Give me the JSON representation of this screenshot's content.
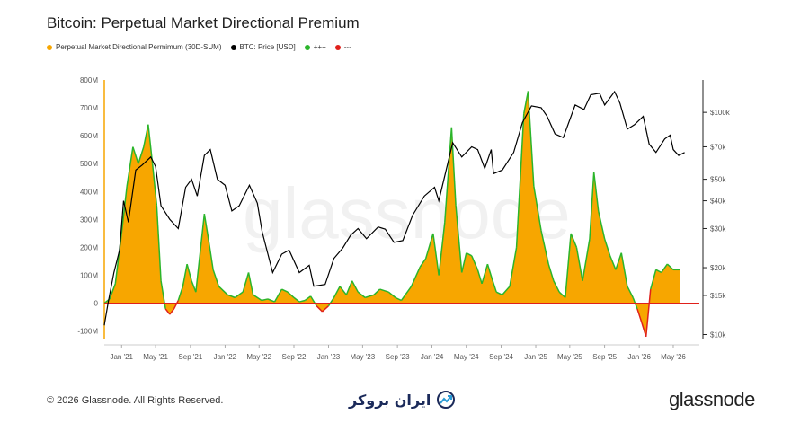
{
  "title": "Bitcoin: Perpetual Market Directional Premium",
  "legend": [
    {
      "label": "Perpetual Market Directional Permimum (30D-SUM)",
      "color": "#f7a600"
    },
    {
      "label": "BTC: Price [USD]",
      "color": "#000000"
    },
    {
      "label": "+++",
      "color": "#2bb52b"
    },
    {
      "label": "---",
      "color": "#e0201b"
    }
  ],
  "watermark": "glassnode",
  "footer": {
    "copyright": "© 2026 Glassnode. All Rights Reserved.",
    "center_brand": "ایران بروکر",
    "right_brand": "glassnode"
  },
  "chart_data": {
    "type": "area",
    "title": "Bitcoin: Perpetual Market Directional Premium",
    "x_ticks": [
      "Jan '21",
      "May '21",
      "Sep '21",
      "Jan '22",
      "May '22",
      "Sep '22",
      "Jan '23",
      "May '23",
      "Sep '23",
      "Jan '24",
      "May '24",
      "Sep '24",
      "Jan '25",
      "May '25",
      "Sep '25",
      "Jan '26",
      "May '26"
    ],
    "y_left_ticks": [
      "800M",
      "700M",
      "600M",
      "500M",
      "400M",
      "300M",
      "200M",
      "100M",
      "0",
      "-100M"
    ],
    "y_left_range": [
      -130,
      800
    ],
    "y_right_ticks": [
      "$100k",
      "$70k",
      "$50k",
      "$40k",
      "$30k",
      "$20k",
      "$15k",
      "$10k"
    ],
    "y_right_scale": "log",
    "y_right_range": [
      9500,
      140000
    ],
    "x_range": [
      "2020-11-01",
      "2026-08-01"
    ],
    "premium_series": {
      "name": "Perpetual Market Directional Permimum (30D-SUM)",
      "points": [
        [
          "2020-11-01",
          0
        ],
        [
          "2020-11-20",
          15
        ],
        [
          "2020-12-10",
          70
        ],
        [
          "2021-01-01",
          250
        ],
        [
          "2021-01-20",
          420
        ],
        [
          "2021-02-10",
          560
        ],
        [
          "2021-03-01",
          500
        ],
        [
          "2021-03-20",
          560
        ],
        [
          "2021-04-05",
          640
        ],
        [
          "2021-04-20",
          500
        ],
        [
          "2021-05-05",
          350
        ],
        [
          "2021-05-20",
          80
        ],
        [
          "2021-06-05",
          -20
        ],
        [
          "2021-06-20",
          -40
        ],
        [
          "2021-07-05",
          -20
        ],
        [
          "2021-07-20",
          10
        ],
        [
          "2021-08-05",
          60
        ],
        [
          "2021-08-20",
          140
        ],
        [
          "2021-09-05",
          80
        ],
        [
          "2021-09-20",
          40
        ],
        [
          "2021-10-05",
          180
        ],
        [
          "2021-10-20",
          320
        ],
        [
          "2021-11-05",
          220
        ],
        [
          "2021-11-20",
          120
        ],
        [
          "2021-12-10",
          60
        ],
        [
          "2022-01-10",
          30
        ],
        [
          "2022-02-05",
          20
        ],
        [
          "2022-03-05",
          40
        ],
        [
          "2022-03-25",
          110
        ],
        [
          "2022-04-10",
          30
        ],
        [
          "2022-05-10",
          10
        ],
        [
          "2022-06-01",
          15
        ],
        [
          "2022-06-25",
          5
        ],
        [
          "2022-07-20",
          50
        ],
        [
          "2022-08-10",
          40
        ],
        [
          "2022-09-01",
          20
        ],
        [
          "2022-09-20",
          5
        ],
        [
          "2022-10-10",
          10
        ],
        [
          "2022-10-30",
          25
        ],
        [
          "2022-11-20",
          -10
        ],
        [
          "2022-12-10",
          -30
        ],
        [
          "2023-01-01",
          -10
        ],
        [
          "2023-01-20",
          20
        ],
        [
          "2023-02-10",
          60
        ],
        [
          "2023-03-05",
          30
        ],
        [
          "2023-03-25",
          80
        ],
        [
          "2023-04-15",
          40
        ],
        [
          "2023-05-10",
          20
        ],
        [
          "2023-06-10",
          30
        ],
        [
          "2023-07-01",
          50
        ],
        [
          "2023-08-01",
          40
        ],
        [
          "2023-08-25",
          20
        ],
        [
          "2023-09-15",
          10
        ],
        [
          "2023-10-20",
          60
        ],
        [
          "2023-11-20",
          130
        ],
        [
          "2023-12-10",
          160
        ],
        [
          "2024-01-05",
          250
        ],
        [
          "2024-01-25",
          100
        ],
        [
          "2024-02-15",
          290
        ],
        [
          "2024-03-10",
          630
        ],
        [
          "2024-03-25",
          350
        ],
        [
          "2024-04-15",
          110
        ],
        [
          "2024-05-01",
          180
        ],
        [
          "2024-05-20",
          170
        ],
        [
          "2024-06-10",
          120
        ],
        [
          "2024-06-25",
          70
        ],
        [
          "2024-07-15",
          140
        ],
        [
          "2024-07-30",
          90
        ],
        [
          "2024-08-15",
          40
        ],
        [
          "2024-09-05",
          30
        ],
        [
          "2024-10-01",
          60
        ],
        [
          "2024-10-25",
          200
        ],
        [
          "2024-11-20",
          680
        ],
        [
          "2024-12-05",
          760
        ],
        [
          "2024-12-25",
          420
        ],
        [
          "2025-01-20",
          260
        ],
        [
          "2025-02-15",
          140
        ],
        [
          "2025-03-05",
          80
        ],
        [
          "2025-03-25",
          40
        ],
        [
          "2025-04-15",
          20
        ],
        [
          "2025-05-05",
          250
        ],
        [
          "2025-05-25",
          200
        ],
        [
          "2025-06-15",
          80
        ],
        [
          "2025-07-10",
          230
        ],
        [
          "2025-07-25",
          470
        ],
        [
          "2025-08-10",
          330
        ],
        [
          "2025-09-01",
          230
        ],
        [
          "2025-09-20",
          170
        ],
        [
          "2025-10-10",
          120
        ],
        [
          "2025-10-30",
          180
        ],
        [
          "2025-11-20",
          60
        ],
        [
          "2025-12-10",
          20
        ],
        [
          "2025-12-25",
          -20
        ],
        [
          "2026-01-10",
          -70
        ],
        [
          "2026-01-25",
          -120
        ],
        [
          "2026-02-10",
          50
        ],
        [
          "2026-03-01",
          120
        ],
        [
          "2026-03-20",
          110
        ],
        [
          "2026-04-10",
          140
        ],
        [
          "2026-05-01",
          120
        ],
        [
          "2026-05-25",
          120
        ]
      ]
    },
    "price_series": {
      "name": "BTC: Price [USD]",
      "points": [
        [
          "2020-11-01",
          11000
        ],
        [
          "2020-11-15",
          14000
        ],
        [
          "2020-12-05",
          19000
        ],
        [
          "2020-12-25",
          24000
        ],
        [
          "2021-01-08",
          40000
        ],
        [
          "2021-01-25",
          32000
        ],
        [
          "2021-02-20",
          55000
        ],
        [
          "2021-03-15",
          58000
        ],
        [
          "2021-04-14",
          63000
        ],
        [
          "2021-05-01",
          57000
        ],
        [
          "2021-05-20",
          38000
        ],
        [
          "2021-06-20",
          33000
        ],
        [
          "2021-07-20",
          30000
        ],
        [
          "2021-08-15",
          46000
        ],
        [
          "2021-09-05",
          50000
        ],
        [
          "2021-09-25",
          42000
        ],
        [
          "2021-10-20",
          64000
        ],
        [
          "2021-11-10",
          68000
        ],
        [
          "2021-12-05",
          50000
        ],
        [
          "2022-01-01",
          47000
        ],
        [
          "2022-01-25",
          36000
        ],
        [
          "2022-02-20",
          38000
        ],
        [
          "2022-03-28",
          47000
        ],
        [
          "2022-04-25",
          39000
        ],
        [
          "2022-05-12",
          29000
        ],
        [
          "2022-06-18",
          19000
        ],
        [
          "2022-07-20",
          23000
        ],
        [
          "2022-08-15",
          24000
        ],
        [
          "2022-09-20",
          19000
        ],
        [
          "2022-10-25",
          20500
        ],
        [
          "2022-11-10",
          16500
        ],
        [
          "2022-12-20",
          16800
        ],
        [
          "2023-01-20",
          22000
        ],
        [
          "2023-02-20",
          24500
        ],
        [
          "2023-03-20",
          28000
        ],
        [
          "2023-04-15",
          30000
        ],
        [
          "2023-05-15",
          27000
        ],
        [
          "2023-06-25",
          30500
        ],
        [
          "2023-07-20",
          29800
        ],
        [
          "2023-08-20",
          26000
        ],
        [
          "2023-09-20",
          26500
        ],
        [
          "2023-10-25",
          34500
        ],
        [
          "2023-12-05",
          42000
        ],
        [
          "2024-01-10",
          46000
        ],
        [
          "2024-01-25",
          40000
        ],
        [
          "2024-03-14",
          73000
        ],
        [
          "2024-04-15",
          63000
        ],
        [
          "2024-05-20",
          70000
        ],
        [
          "2024-06-10",
          68000
        ],
        [
          "2024-07-05",
          56000
        ],
        [
          "2024-07-28",
          68000
        ],
        [
          "2024-08-05",
          53000
        ],
        [
          "2024-09-05",
          55000
        ],
        [
          "2024-10-15",
          66000
        ],
        [
          "2024-11-15",
          90000
        ],
        [
          "2024-12-17",
          107000
        ],
        [
          "2025-01-20",
          105000
        ],
        [
          "2025-02-10",
          96000
        ],
        [
          "2025-03-10",
          80000
        ],
        [
          "2025-04-08",
          77000
        ],
        [
          "2025-05-20",
          108000
        ],
        [
          "2025-06-20",
          103000
        ],
        [
          "2025-07-14",
          120000
        ],
        [
          "2025-08-14",
          122000
        ],
        [
          "2025-09-01",
          108000
        ],
        [
          "2025-10-06",
          124000
        ],
        [
          "2025-10-25",
          110000
        ],
        [
          "2025-11-20",
          84000
        ],
        [
          "2025-12-15",
          88000
        ],
        [
          "2026-01-15",
          96000
        ],
        [
          "2026-02-05",
          72000
        ],
        [
          "2026-03-01",
          66000
        ],
        [
          "2026-04-01",
          76000
        ],
        [
          "2026-04-20",
          79000
        ],
        [
          "2026-05-01",
          68000
        ],
        [
          "2026-05-20",
          64000
        ],
        [
          "2026-06-10",
          66000
        ]
      ]
    },
    "legend_position": "top-left",
    "grid": false
  }
}
